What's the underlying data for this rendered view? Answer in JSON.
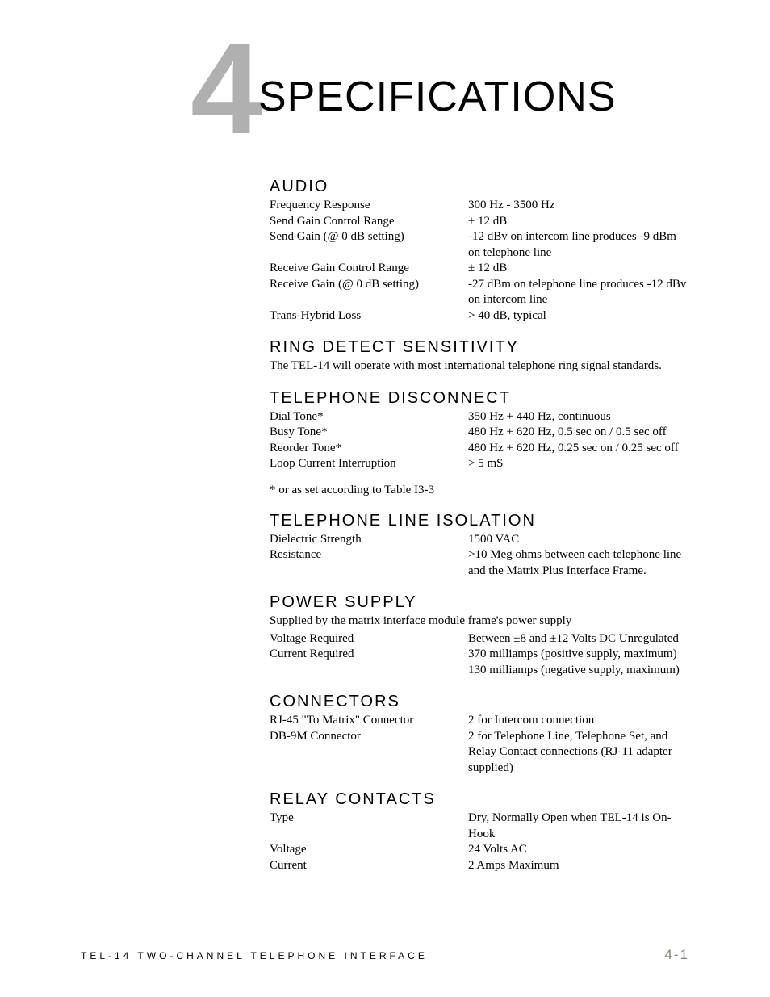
{
  "chapter": {
    "number": "4",
    "title": "SPECIFICATIONS"
  },
  "sections": {
    "audio": {
      "title": "AUDIO",
      "rows": [
        {
          "label": "Frequency Response",
          "value": "300 Hz - 3500 Hz"
        },
        {
          "label": "Send Gain Control Range",
          "value": "± 12 dB"
        },
        {
          "label": "Send Gain (@ 0 dB setting)",
          "value": "-12 dBv on intercom line produces -9 dBm on telephone line"
        },
        {
          "label": "Receive Gain Control Range",
          "value": "± 12 dB"
        },
        {
          "label": "Receive Gain (@ 0 dB setting)",
          "value": "-27 dBm on telephone line produces -12 dBv on intercom line"
        },
        {
          "label": "Trans-Hybrid Loss",
          "value": "> 40 dB, typical"
        }
      ]
    },
    "ring": {
      "title": "RING DETECT SENSITIVITY",
      "note": "The TEL-14 will operate with most international telephone ring signal standards."
    },
    "disconnect": {
      "title": "TELEPHONE DISCONNECT",
      "rows": [
        {
          "label": "Dial Tone*",
          "value": "350 Hz + 440 Hz, continuous"
        },
        {
          "label": "Busy Tone*",
          "value": "480 Hz + 620 Hz, 0.5 sec on / 0.5 sec off"
        },
        {
          "label": "Reorder Tone*",
          "value": "480 Hz + 620 Hz, 0.25 sec on / 0.25 sec off"
        },
        {
          "label": "Loop Current Interruption",
          "value": "> 5 mS"
        }
      ],
      "footnote": "* or as set according to Table I3-3"
    },
    "isolation": {
      "title": "TELEPHONE LINE ISOLATION",
      "rows": [
        {
          "label": "Dielectric Strength",
          "value": "1500 VAC"
        },
        {
          "label": "Resistance",
          "value": ">10 Meg ohms between each telephone line and the Matrix Plus Interface Frame."
        }
      ]
    },
    "power": {
      "title": "POWER SUPPLY",
      "note": "Supplied by the matrix interface module frame's power supply",
      "rows": [
        {
          "label": "Voltage Required",
          "value": "Between ±8 and ±12 Volts DC Unregulated"
        },
        {
          "label": "Current Required",
          "value": "370 milliamps (positive supply, maximum)"
        },
        {
          "label": "",
          "value": "130 milliamps (negative supply, maximum)"
        }
      ]
    },
    "connectors": {
      "title": "CONNECTORS",
      "rows": [
        {
          "label": "RJ-45 \"To Matrix\" Connector",
          "value": "2 for Intercom connection"
        },
        {
          "label": "DB-9M Connector",
          "value": "2 for Telephone Line, Telephone Set, and Relay Contact connections (RJ-11 adapter supplied)"
        }
      ]
    },
    "relay": {
      "title": "RELAY CONTACTS",
      "rows": [
        {
          "label": "Type",
          "value": "Dry, Normally Open when TEL-14 is On-Hook"
        },
        {
          "label": "Voltage",
          "value": "24 Volts AC"
        },
        {
          "label": "Current",
          "value": "2 Amps Maximum"
        }
      ]
    }
  },
  "footer": {
    "left": "TEL-14 TWO-CHANNEL TELEPHONE INTERFACE",
    "right": "4-1"
  },
  "colors": {
    "chapter_number": "#b0b0b0",
    "text": "#000000",
    "page_number": "#8a8275",
    "background": "#ffffff"
  },
  "typography": {
    "body_fontsize": 15,
    "section_title_fontsize": 20,
    "chapter_title_fontsize": 52,
    "chapter_number_fontsize": 160,
    "footer_left_fontsize": 12,
    "footer_right_fontsize": 17
  }
}
